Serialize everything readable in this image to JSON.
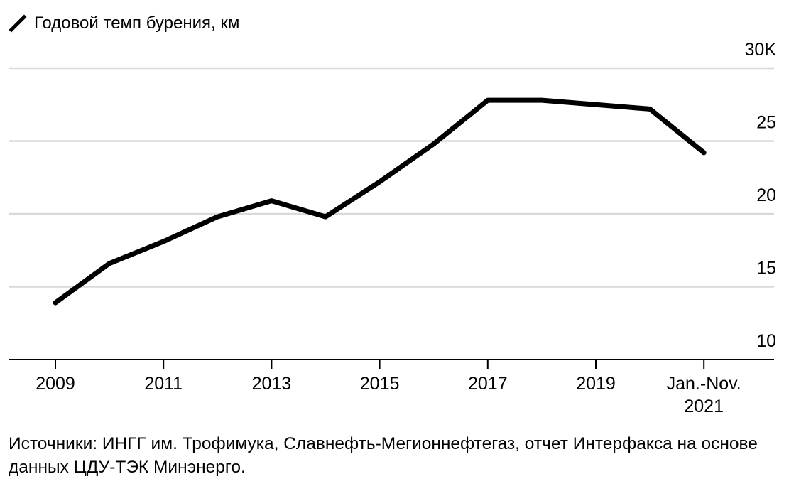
{
  "chart_data": {
    "type": "line",
    "legend_label": "Годовой темп бурения, км",
    "categories": [
      "2009",
      "2010",
      "2011",
      "2012",
      "2013",
      "2014",
      "2015",
      "2016",
      "2017",
      "2018",
      "2019",
      "2020",
      "Jan.-Nov. 2021"
    ],
    "series": [
      {
        "name": "Годовой темп бурения, км",
        "values": [
          13.9,
          16.6,
          18.1,
          19.8,
          20.9,
          19.8,
          22.2,
          24.8,
          27.8,
          27.8,
          27.5,
          27.2,
          24.2
        ]
      }
    ],
    "x_tick_labels": [
      {
        "index": 0,
        "lines": [
          "2009"
        ]
      },
      {
        "index": 2,
        "lines": [
          "2011"
        ]
      },
      {
        "index": 4,
        "lines": [
          "2013"
        ]
      },
      {
        "index": 6,
        "lines": [
          "2015"
        ]
      },
      {
        "index": 8,
        "lines": [
          "2017"
        ]
      },
      {
        "index": 10,
        "lines": [
          "2019"
        ]
      },
      {
        "index": 12,
        "lines": [
          "Jan.-Nov.",
          "2021"
        ]
      }
    ],
    "y_ticks": [
      {
        "value": 10,
        "label": "10"
      },
      {
        "value": 15,
        "label": "15"
      },
      {
        "value": 20,
        "label": "20"
      },
      {
        "value": 25,
        "label": "25"
      },
      {
        "value": 30,
        "label": "30K"
      }
    ],
    "ylim": [
      10,
      30
    ],
    "grid": true,
    "line_color": "#000000",
    "grid_color": "#d9d9d9"
  },
  "source_text": "Источники: ИНГГ им. Трофимука, Славнефть-Мегионнефтегаз, отчет Интерфакса на основе данных ЦДУ-ТЭК Минэнерго."
}
